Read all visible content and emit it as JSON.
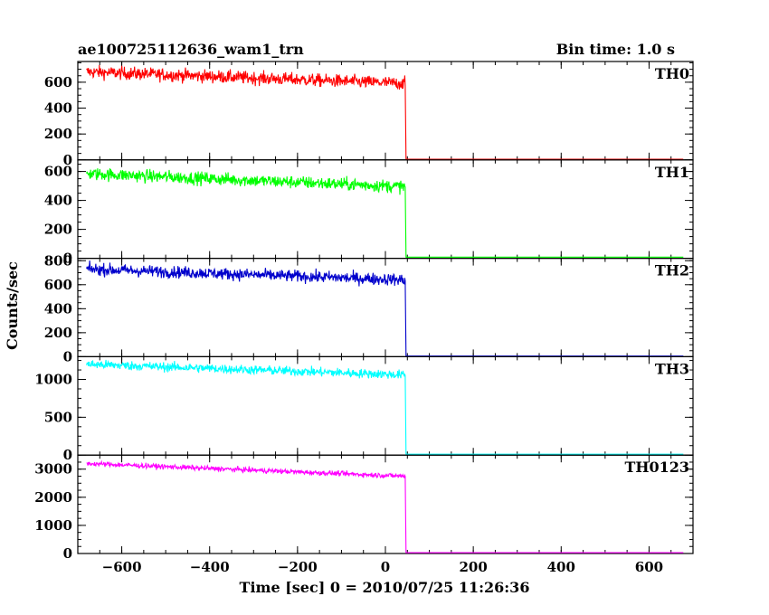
{
  "header": {
    "title": "ae100725112636_wam1_trn",
    "bin_time": "Bin time: 1.0 s"
  },
  "chart_data": {
    "type": "line",
    "xlabel": "Time [sec] 0 = 2010/07/25 11:26:36",
    "ylabel": "Counts/sec",
    "xlim": [
      -700,
      700
    ],
    "x_ticks": [
      -600,
      -400,
      -200,
      0,
      200,
      400,
      600
    ],
    "x_start": -680,
    "x_drop": 45,
    "x_end": 680,
    "panels": [
      {
        "name": "TH0",
        "color": "#ff0000",
        "ylim": [
          0,
          760
        ],
        "y_ticks": [
          0,
          200,
          400,
          600
        ],
        "start_level": 680,
        "pre_drop_level": 590,
        "noise": 45,
        "after_level": 5
      },
      {
        "name": "TH1",
        "color": "#00ff00",
        "ylim": [
          0,
          680
        ],
        "y_ticks": [
          0,
          200,
          400,
          600
        ],
        "start_level": 585,
        "pre_drop_level": 495,
        "noise": 40,
        "after_level": 8
      },
      {
        "name": "TH2",
        "color": "#0000cc",
        "ylim": [
          0,
          820
        ],
        "y_ticks": [
          0,
          200,
          400,
          600,
          800
        ],
        "start_level": 730,
        "pre_drop_level": 640,
        "noise": 45,
        "after_level": 5
      },
      {
        "name": "TH3",
        "color": "#00ffff",
        "ylim": [
          0,
          1300
        ],
        "y_ticks": [
          0,
          500,
          1000
        ],
        "start_level": 1200,
        "pre_drop_level": 1060,
        "noise": 55,
        "after_level": 12
      },
      {
        "name": "TH0123",
        "color": "#ff00ff",
        "ylim": [
          0,
          3500
        ],
        "y_ticks": [
          0,
          1000,
          2000,
          3000
        ],
        "start_level": 3200,
        "pre_drop_level": 2750,
        "noise": 80,
        "after_level": 30
      }
    ]
  }
}
